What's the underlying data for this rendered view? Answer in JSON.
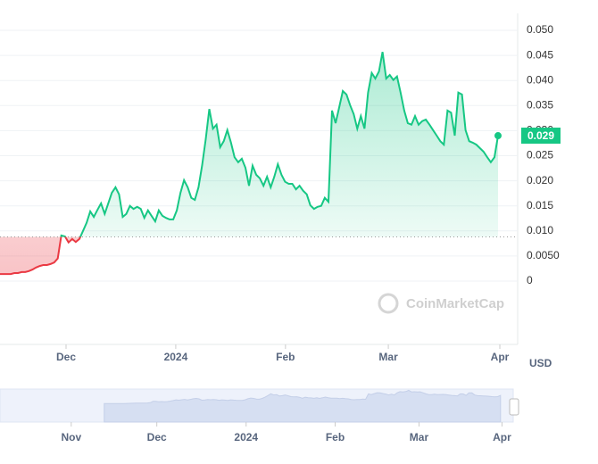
{
  "chart_data": {
    "type": "line",
    "values": [
      0.0014,
      0.0014,
      0.0014,
      0.0014,
      0.0016,
      0.0016,
      0.0018,
      0.0018,
      0.002,
      0.0023,
      0.0027,
      0.003,
      0.0032,
      0.0032,
      0.0034,
      0.0037,
      0.0045,
      0.0091,
      0.0089,
      0.0077,
      0.0084,
      0.0078,
      0.0084,
      0.01,
      0.0116,
      0.0139,
      0.0128,
      0.0142,
      0.0155,
      0.0134,
      0.0155,
      0.0176,
      0.0187,
      0.0173,
      0.0128,
      0.0134,
      0.015,
      0.0144,
      0.0148,
      0.0144,
      0.0126,
      0.0141,
      0.013,
      0.0119,
      0.0141,
      0.013,
      0.0126,
      0.0123,
      0.0123,
      0.0141,
      0.0176,
      0.0201,
      0.0187,
      0.0166,
      0.0162,
      0.0187,
      0.023,
      0.0283,
      0.0343,
      0.0304,
      0.0312,
      0.0267,
      0.0279,
      0.0301,
      0.0276,
      0.0247,
      0.0237,
      0.0244,
      0.0226,
      0.019,
      0.023,
      0.0212,
      0.0205,
      0.019,
      0.0208,
      0.0187,
      0.0208,
      0.0233,
      0.0212,
      0.0198,
      0.0194,
      0.0194,
      0.0183,
      0.019,
      0.018,
      0.0173,
      0.0151,
      0.0144,
      0.0148,
      0.015,
      0.0166,
      0.0158,
      0.034,
      0.0315,
      0.0347,
      0.0379,
      0.0372,
      0.0351,
      0.0333,
      0.0304,
      0.0329,
      0.0304,
      0.0376,
      0.0415,
      0.0404,
      0.0418,
      0.0457,
      0.0404,
      0.0411,
      0.0401,
      0.0408,
      0.0376,
      0.034,
      0.0315,
      0.0312,
      0.0329,
      0.0312,
      0.0319,
      0.0322,
      0.0312,
      0.0301,
      0.029,
      0.0279,
      0.0272,
      0.034,
      0.0336,
      0.029,
      0.0376,
      0.0372,
      0.0301,
      0.0279,
      0.0276,
      0.0272,
      0.0265,
      0.0258,
      0.0247,
      0.0237,
      0.0247,
      0.029
    ],
    "baseline": 0.0088,
    "current_label": "0.029",
    "up_color": "#16c784",
    "down_color": "#ea3943",
    "xlim": [
      0,
      138
    ],
    "xticks": [
      {
        "value": 18.3,
        "label": "Dec"
      },
      {
        "value": 48.7,
        "label": "2024"
      },
      {
        "value": 79.1,
        "label": "Feb"
      },
      {
        "value": 107.6,
        "label": "Mar"
      },
      {
        "value": 138.5,
        "label": "Apr"
      }
    ],
    "ylim": [
      0,
      0.05
    ],
    "yticks": [
      0,
      {
        "value": 0.005,
        "label": "0.0050"
      },
      {
        "value": 0.01,
        "label": "0.010"
      },
      {
        "value": 0.015,
        "label": "0.015"
      },
      {
        "value": 0.02,
        "label": "0.020"
      },
      {
        "value": 0.025,
        "label": "0.025"
      },
      {
        "value": 0.03,
        "label": "0.030"
      },
      {
        "value": 0.035,
        "label": "0.035"
      },
      {
        "value": 0.04,
        "label": "0.040"
      },
      {
        "value": 0.045,
        "label": "0.045"
      },
      {
        "value": 0.05,
        "label": "0.050"
      }
    ],
    "grid": true,
    "currency": "USD",
    "watermark": "CoinMarketCap",
    "navigator": {
      "xlim": [
        -36.3,
        142.4
      ],
      "ylim": [
        -0.06,
        0.05
      ],
      "xticks": [
        {
          "value": -11.5,
          "label": "Nov"
        },
        {
          "value": 18.3,
          "label": "Dec"
        },
        {
          "value": 49.4,
          "label": "2024"
        },
        {
          "value": 80.4,
          "label": "Feb"
        },
        {
          "value": 109.6,
          "label": "Mar"
        },
        {
          "value": 138.5,
          "label": "Apr"
        }
      ]
    }
  }
}
